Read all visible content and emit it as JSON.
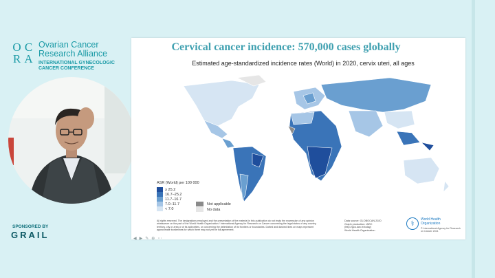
{
  "branding": {
    "logo_letters": [
      "O",
      "C",
      "R",
      "A"
    ],
    "org_line1": "Ovarian Cancer",
    "org_line2": "Research Alliance",
    "conference_line1": "INTERNATIONAL GYNECOLOGIC",
    "conference_line2": "CANCER CONFERENCE",
    "sponsor_label": "SPONSORED BY",
    "sponsor_name": "GRAIL"
  },
  "slide": {
    "title": "Cervical cancer incidence: 570,000 cases globally",
    "map_title": "Estimated age-standardized incidence rates (World) in 2020, cervix uteri, all ages",
    "legend": {
      "title": "ASR (World) per 100 000",
      "items": [
        {
          "label": "≥ 25.2",
          "color": "#1f4e9c"
        },
        {
          "label": "16.7–25.2",
          "color": "#3a74b8"
        },
        {
          "label": "11.7–16.7",
          "color": "#6a9fd0"
        },
        {
          "label": "7.0–11.7",
          "color": "#a6c6e6"
        },
        {
          "label": "< 7.0",
          "color": "#d6e5f3"
        }
      ],
      "not_applicable": {
        "label": "Not applicable",
        "color": "#8a8a8a"
      },
      "no_data": {
        "label": "No data",
        "color": "#e6e6e6"
      }
    },
    "disclaimer": "All rights reserved. The designations employed and the presentation of the material in this publication do not imply the expression of any opinion whatsoever on the part of the World Health Organization / International Agency for Research on Cancer concerning the legal status of any country, territory, city or area or of its authorities, or concerning the delimitation of its frontiers or boundaries. Dotted and dashed lines on maps represent approximate borderlines for which there may not yet be full agreement.",
    "data_source": "Data source: GLOBOCAN 2020\nGraph production: IARC\n(http://gco.iarc.fr/today)\nWorld Health Organization",
    "who_name": "World Health Organization",
    "who_copyright": "© International Agency for Research on Cancer 2021"
  }
}
